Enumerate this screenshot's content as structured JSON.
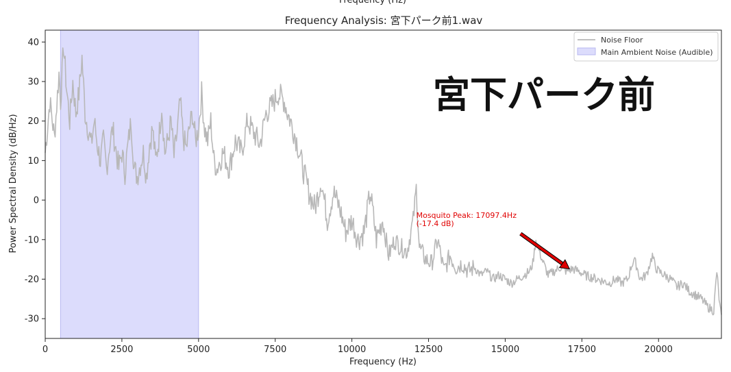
{
  "header": {
    "top_cut_label": "Frequency (Hz)"
  },
  "overlay": {
    "location_text": "宮下パーク前"
  },
  "chart_data": {
    "type": "line",
    "title": "Frequency Analysis: 宮下パーク前1.wav",
    "xlabel": "Frequency (Hz)",
    "ylabel": "Power Spectral Density (dB/Hz)",
    "xlim": [
      0,
      22050
    ],
    "ylim": [
      -35,
      43
    ],
    "xticks": [
      0,
      2500,
      5000,
      7500,
      10000,
      12500,
      15000,
      17500,
      20000
    ],
    "yticks": [
      -30,
      -20,
      -10,
      0,
      10,
      20,
      30,
      40
    ],
    "grid": false,
    "legend": {
      "placement": "top-right",
      "entries": [
        {
          "label": "Noise Floor",
          "kind": "line",
          "color": "#aaaaaa"
        },
        {
          "label": "Main Ambient Noise (Audible)",
          "kind": "band",
          "color": "#dcdcfc"
        }
      ]
    },
    "shaded_band": {
      "x_start": 500,
      "x_end": 5000,
      "color": "#dcdcfc",
      "edge": "#b8b8f0"
    },
    "series": [
      {
        "name": "Noise Floor",
        "color": "#b8b8b8",
        "x": [
          0,
          150,
          300,
          450,
          500,
          600,
          700,
          800,
          900,
          1000,
          1100,
          1200,
          1300,
          1400,
          1500,
          1600,
          1700,
          1800,
          1900,
          2000,
          2100,
          2200,
          2300,
          2400,
          2500,
          2600,
          2700,
          2800,
          2900,
          3000,
          3100,
          3200,
          3300,
          3400,
          3500,
          3600,
          3700,
          3800,
          3900,
          4000,
          4100,
          4200,
          4300,
          4400,
          4500,
          4600,
          4700,
          4800,
          4900,
          5000,
          5100,
          5200,
          5300,
          5400,
          5500,
          5600,
          5800,
          6000,
          6200,
          6400,
          6600,
          6800,
          7000,
          7200,
          7400,
          7600,
          7700,
          7800,
          7900,
          8000,
          8200,
          8400,
          8600,
          8800,
          9000,
          9200,
          9400,
          9600,
          9800,
          10000,
          10200,
          10400,
          10600,
          10800,
          11000,
          11200,
          11400,
          11600,
          11800,
          12000,
          12100,
          12200,
          12400,
          12600,
          12800,
          13000,
          13200,
          13400,
          13600,
          13800,
          14000,
          14200,
          14400,
          14600,
          14800,
          15000,
          15200,
          15400,
          15600,
          15800,
          15900,
          16000,
          16200,
          16400,
          16600,
          16800,
          17000,
          17200,
          17400,
          17600,
          17800,
          18000,
          18200,
          18400,
          18600,
          18800,
          19000,
          19100,
          19200,
          19300,
          19400,
          19600,
          19800,
          19900,
          20000,
          20200,
          20400,
          20600,
          20800,
          21000,
          21200,
          21400,
          21600,
          21800,
          21900,
          22000,
          22050
        ],
        "values": [
          12,
          25,
          16,
          32,
          25,
          39,
          28,
          20,
          30,
          22,
          27,
          36,
          22,
          18,
          14,
          20,
          14,
          10,
          15,
          8,
          14,
          18,
          13,
          8,
          12,
          7,
          14,
          20,
          8,
          6,
          9,
          12,
          6,
          14,
          18,
          10,
          15,
          24,
          12,
          15,
          20,
          11,
          17,
          25,
          16,
          13,
          18,
          22,
          15,
          18,
          27,
          18,
          15,
          20,
          10,
          8,
          12,
          8,
          15,
          12,
          20,
          17,
          14,
          22,
          24,
          27,
          26,
          25,
          22,
          20,
          15,
          8,
          2,
          -2,
          5,
          -5,
          2,
          -2,
          -8,
          -5,
          -10,
          -8,
          2,
          -10,
          -5,
          -14,
          -10,
          -12,
          -13,
          -5,
          3,
          -12,
          -15,
          -16,
          -10,
          -18,
          -14,
          -17,
          -16,
          -18,
          -17,
          -19,
          -18,
          -20,
          -19,
          -20,
          -21,
          -20,
          -19,
          -18,
          -16,
          -10,
          -15,
          -19,
          -18,
          -17,
          -18,
          -17.4,
          -18,
          -19,
          -19.5,
          -20,
          -20.5,
          -21,
          -20,
          -21,
          -20,
          -17,
          -15,
          -17,
          -20,
          -19,
          -14,
          -17,
          -18,
          -19,
          -20,
          -22,
          -21,
          -23,
          -24,
          -25,
          -27,
          -28,
          -18,
          -27,
          -29
        ]
      }
    ],
    "annotation": {
      "text_line1": "Mosquito Peak: 17097.4Hz",
      "text_line2": "(-17.4 dB)",
      "point": {
        "x": 17097.4,
        "y": -17.4
      },
      "text_anchor": {
        "x": 12100,
        "y": -4.5
      },
      "arrow_start": {
        "x": 15500,
        "y": -8.5
      },
      "color": "#e00000"
    }
  }
}
